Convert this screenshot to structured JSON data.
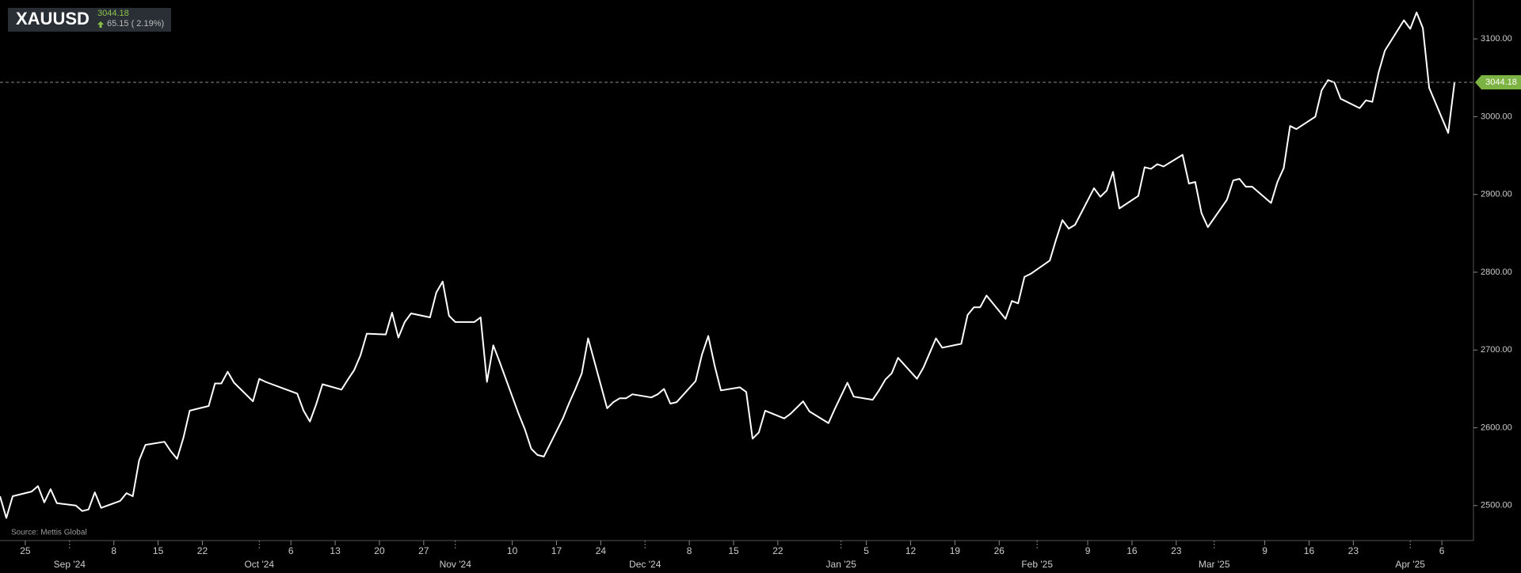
{
  "chart_data": {
    "type": "line",
    "symbol": "XAUUSD",
    "last_price": 3044.18,
    "change": "65.15 ( 2.19%)",
    "source": "Source: Mettis Global",
    "color": "#ffffff",
    "x": [
      "2024-08-21",
      "2024-08-22",
      "2024-08-23",
      "2024-08-26",
      "2024-08-27",
      "2024-08-28",
      "2024-08-29",
      "2024-08-30",
      "2024-09-02",
      "2024-09-03",
      "2024-09-04",
      "2024-09-05",
      "2024-09-06",
      "2024-09-09",
      "2024-09-10",
      "2024-09-11",
      "2024-09-12",
      "2024-09-13",
      "2024-09-16",
      "2024-09-17",
      "2024-09-18",
      "2024-09-19",
      "2024-09-20",
      "2024-09-23",
      "2024-09-24",
      "2024-09-25",
      "2024-09-26",
      "2024-09-27",
      "2024-09-30",
      "2024-10-01",
      "2024-10-02",
      "2024-10-03",
      "2024-10-04",
      "2024-10-07",
      "2024-10-08",
      "2024-10-09",
      "2024-10-10",
      "2024-10-11",
      "2024-10-14",
      "2024-10-15",
      "2024-10-16",
      "2024-10-17",
      "2024-10-18",
      "2024-10-21",
      "2024-10-22",
      "2024-10-23",
      "2024-10-24",
      "2024-10-25",
      "2024-10-28",
      "2024-10-29",
      "2024-10-30",
      "2024-10-31",
      "2024-11-01",
      "2024-11-04",
      "2024-11-05",
      "2024-11-06",
      "2024-11-07",
      "2024-11-08",
      "2024-11-11",
      "2024-11-12",
      "2024-11-13",
      "2024-11-14",
      "2024-11-15",
      "2024-11-18",
      "2024-11-19",
      "2024-11-20",
      "2024-11-21",
      "2024-11-22",
      "2024-11-25",
      "2024-11-26",
      "2024-11-27",
      "2024-11-28",
      "2024-11-29",
      "2024-12-02",
      "2024-12-03",
      "2024-12-04",
      "2024-12-05",
      "2024-12-06",
      "2024-12-09",
      "2024-12-10",
      "2024-12-11",
      "2024-12-12",
      "2024-12-13",
      "2024-12-16",
      "2024-12-17",
      "2024-12-18",
      "2024-12-19",
      "2024-12-20",
      "2024-12-23",
      "2024-12-24",
      "2024-12-26",
      "2024-12-27",
      "2024-12-30",
      "2024-12-31",
      "2025-01-02",
      "2025-01-03",
      "2025-01-06",
      "2025-01-07",
      "2025-01-08",
      "2025-01-09",
      "2025-01-10",
      "2025-01-13",
      "2025-01-14",
      "2025-01-15",
      "2025-01-16",
      "2025-01-17",
      "2025-01-20",
      "2025-01-21",
      "2025-01-22",
      "2025-01-23",
      "2025-01-24",
      "2025-01-27",
      "2025-01-28",
      "2025-01-29",
      "2025-01-30",
      "2025-01-31",
      "2025-02-03",
      "2025-02-04",
      "2025-02-05",
      "2025-02-06",
      "2025-02-07",
      "2025-02-10",
      "2025-02-11",
      "2025-02-12",
      "2025-02-13",
      "2025-02-14",
      "2025-02-17",
      "2025-02-18",
      "2025-02-19",
      "2025-02-20",
      "2025-02-21",
      "2025-02-24",
      "2025-02-25",
      "2025-02-26",
      "2025-02-27",
      "2025-02-28",
      "2025-03-03",
      "2025-03-04",
      "2025-03-05",
      "2025-03-06",
      "2025-03-07",
      "2025-03-10",
      "2025-03-11",
      "2025-03-12",
      "2025-03-13",
      "2025-03-14",
      "2025-03-17",
      "2025-03-18",
      "2025-03-19",
      "2025-03-20",
      "2025-03-21",
      "2025-03-24",
      "2025-03-25",
      "2025-03-26",
      "2025-03-27",
      "2025-03-28",
      "2025-03-31",
      "2025-04-01",
      "2025-04-02",
      "2025-04-03",
      "2025-04-04",
      "2025-04-07",
      "2025-04-08"
    ],
    "values": [
      2512,
      2484,
      2512,
      2518,
      2525,
      2504,
      2521,
      2503,
      2500,
      2493,
      2495,
      2517,
      2497,
      2506,
      2516,
      2512,
      2558,
      2578,
      2582,
      2570,
      2560,
      2587,
      2622,
      2628,
      2657,
      2657,
      2672,
      2658,
      2634,
      2663,
      2659,
      2656,
      2653,
      2644,
      2622,
      2608,
      2630,
      2656,
      2649,
      2662,
      2674,
      2693,
      2721,
      2720,
      2748,
      2716,
      2736,
      2747,
      2742,
      2774,
      2788,
      2744,
      2736,
      2736,
      2742,
      2659,
      2706,
      2685,
      2618,
      2598,
      2573,
      2565,
      2563,
      2612,
      2632,
      2650,
      2670,
      2715,
      2625,
      2633,
      2638,
      2638,
      2643,
      2639,
      2643,
      2650,
      2631,
      2633,
      2660,
      2694,
      2718,
      2680,
      2648,
      2652,
      2646,
      2586,
      2594,
      2622,
      2612,
      2618,
      2634,
      2621,
      2606,
      2624,
      2658,
      2640,
      2636,
      2648,
      2662,
      2670,
      2690,
      2663,
      2677,
      2696,
      2715,
      2703,
      2708,
      2745,
      2755,
      2755,
      2770,
      2740,
      2763,
      2760,
      2794,
      2798,
      2815,
      2842,
      2867,
      2856,
      2861,
      2908,
      2897,
      2905,
      2929,
      2882,
      2898,
      2935,
      2933,
      2939,
      2936,
      2951,
      2914,
      2916,
      2876,
      2858,
      2893,
      2918,
      2920,
      2910,
      2910,
      2889,
      2916,
      2934,
      2988,
      2984,
      3000,
      3034,
      3047,
      3044,
      3023,
      3011,
      3021,
      3019,
      3057,
      3085,
      3124,
      3113,
      3134,
      3114,
      3037,
      2979,
      3044.18
    ],
    "xlim": [
      "2024-08-21",
      "2025-04-11"
    ],
    "xticks": [
      {
        "value": "2024-08-25",
        "label": "25"
      },
      {
        "value": "2024-09-01",
        "label": "Sep '24"
      },
      {
        "value": "2024-09-08",
        "label": "8"
      },
      {
        "value": "2024-09-15",
        "label": "15"
      },
      {
        "value": "2024-09-22",
        "label": "22"
      },
      {
        "value": "2024-10-01",
        "label": "Oct '24"
      },
      {
        "value": "2024-10-06",
        "label": "6"
      },
      {
        "value": "2024-10-13",
        "label": "13"
      },
      {
        "value": "2024-10-20",
        "label": "20"
      },
      {
        "value": "2024-10-27",
        "label": "27"
      },
      {
        "value": "2024-11-01",
        "label": "Nov '24"
      },
      {
        "value": "2024-11-10",
        "label": "10"
      },
      {
        "value": "2024-11-17",
        "label": "17"
      },
      {
        "value": "2024-11-24",
        "label": "24"
      },
      {
        "value": "2024-12-01",
        "label": "Dec '24"
      },
      {
        "value": "2024-12-08",
        "label": "8"
      },
      {
        "value": "2024-12-15",
        "label": "15"
      },
      {
        "value": "2024-12-22",
        "label": "22"
      },
      {
        "value": "2025-01-01",
        "label": "Jan '25"
      },
      {
        "value": "2025-01-05",
        "label": "5"
      },
      {
        "value": "2025-01-12",
        "label": "12"
      },
      {
        "value": "2025-01-19",
        "label": "19"
      },
      {
        "value": "2025-01-26",
        "label": "26"
      },
      {
        "value": "2025-02-01",
        "label": "Feb '25"
      },
      {
        "value": "2025-02-09",
        "label": "9"
      },
      {
        "value": "2025-02-16",
        "label": "16"
      },
      {
        "value": "2025-02-23",
        "label": "23"
      },
      {
        "value": "2025-03-01",
        "label": "Mar '25"
      },
      {
        "value": "2025-03-09",
        "label": "9"
      },
      {
        "value": "2025-03-16",
        "label": "16"
      },
      {
        "value": "2025-03-23",
        "label": "23"
      },
      {
        "value": "2025-04-01",
        "label": "Apr '25"
      },
      {
        "value": "2025-04-06",
        "label": "6"
      }
    ],
    "ylim": [
      2455,
      3150
    ],
    "yticks": [
      {
        "value": 2500,
        "label": "2500.00"
      },
      {
        "value": 2600,
        "label": "2600.00"
      },
      {
        "value": 2700,
        "label": "2700.00"
      },
      {
        "value": 2800,
        "label": "2800.00"
      },
      {
        "value": 2900,
        "label": "2900.00"
      },
      {
        "value": 3000,
        "label": "3000.00"
      },
      {
        "value": 3100,
        "label": "3100.00"
      }
    ]
  }
}
